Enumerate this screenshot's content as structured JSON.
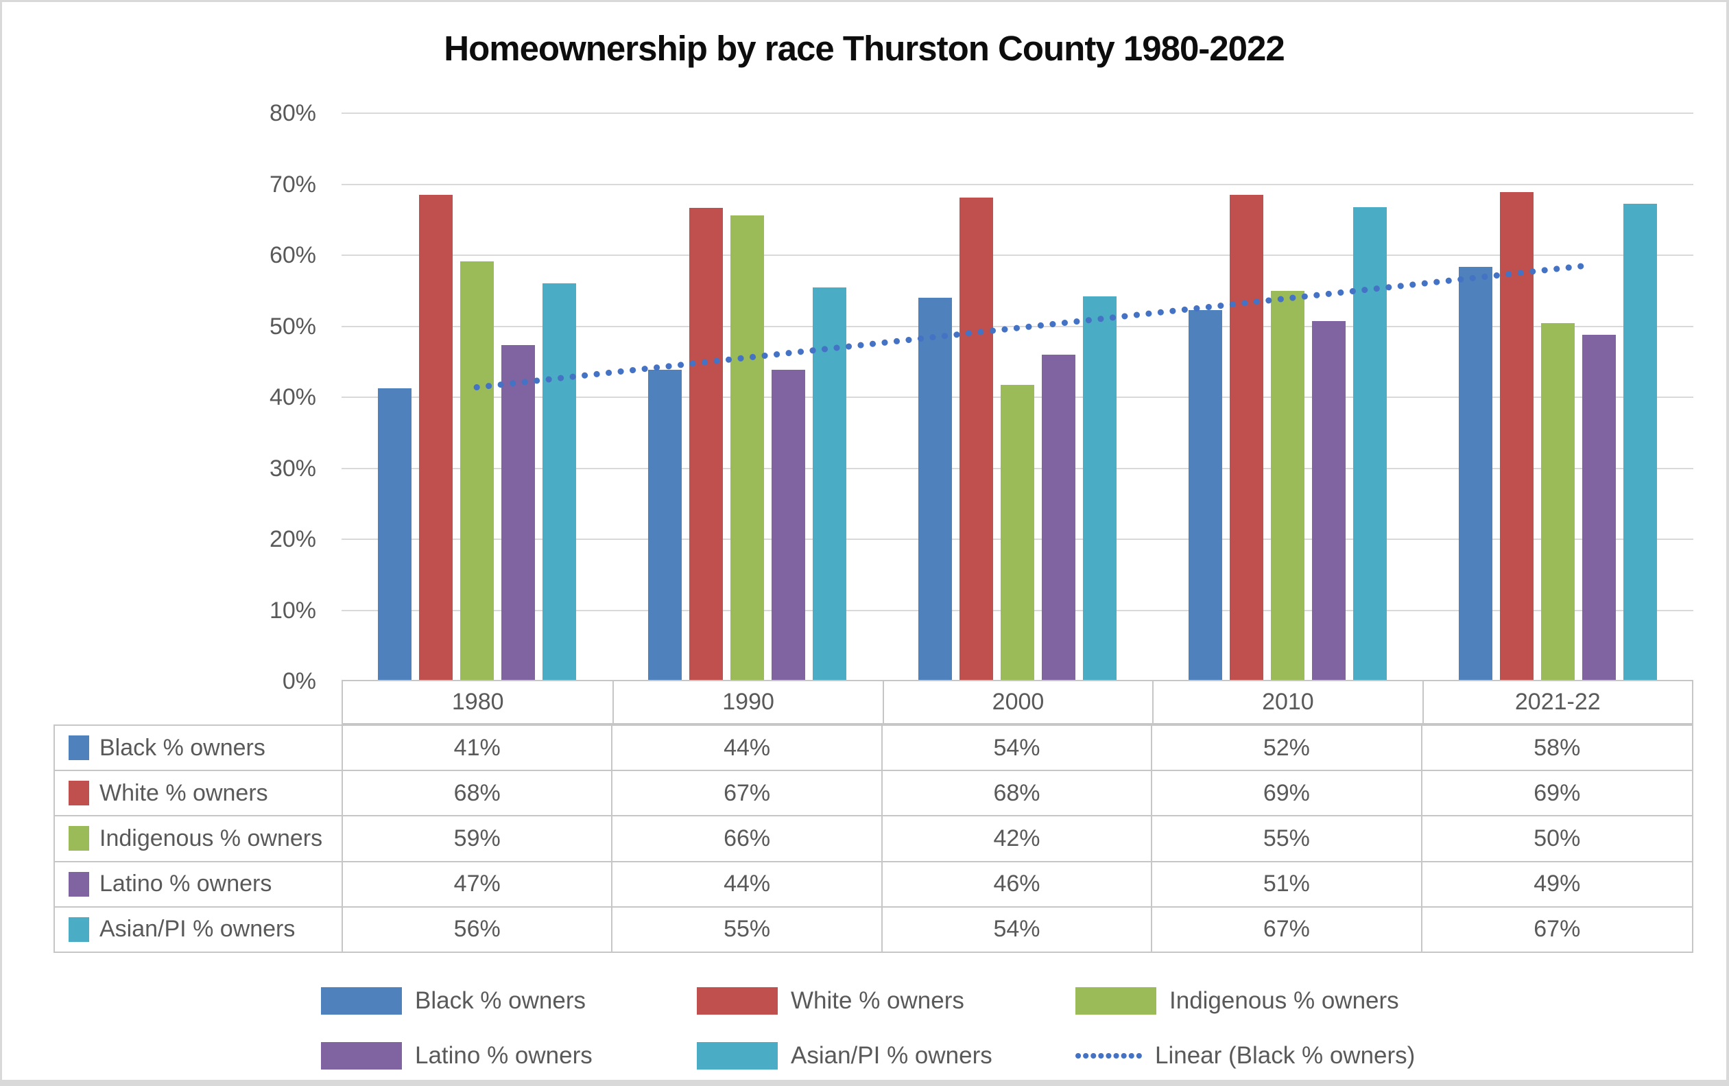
{
  "chart_data": {
    "type": "bar",
    "title": "Homeownership by race Thurston County 1980-2022",
    "xlabel": "",
    "ylabel": "",
    "categories": [
      "1980",
      "1990",
      "2000",
      "2010",
      "2021-22"
    ],
    "series": [
      {
        "name": "Black % owners",
        "color": "#4F81BD",
        "values": [
          41,
          44,
          54,
          52,
          58
        ],
        "bar_values": [
          41.3,
          43.9,
          54.0,
          52.3,
          58.4
        ],
        "display": [
          "41%",
          "44%",
          "54%",
          "52%",
          "58%"
        ]
      },
      {
        "name": "White % owners",
        "color": "#C0504D",
        "values": [
          68,
          67,
          68,
          69,
          69
        ],
        "bar_values": [
          68.5,
          66.7,
          68.1,
          68.5,
          68.9
        ],
        "display": [
          "68%",
          "67%",
          "68%",
          "69%",
          "69%"
        ]
      },
      {
        "name": "Indigenous % owners",
        "color": "#9BBB59",
        "values": [
          59,
          66,
          42,
          55,
          50
        ],
        "bar_values": [
          59.1,
          65.6,
          41.7,
          55.0,
          50.4
        ],
        "display": [
          "59%",
          "66%",
          "42%",
          "55%",
          "50%"
        ]
      },
      {
        "name": "Latino % owners",
        "color": "#8064A2",
        "values": [
          47,
          44,
          46,
          51,
          49
        ],
        "bar_values": [
          47.3,
          43.9,
          46.0,
          50.7,
          48.8
        ],
        "display": [
          "47%",
          "44%",
          "46%",
          "51%",
          "49%"
        ]
      },
      {
        "name": "Asian/PI % owners",
        "color": "#4BACC6",
        "values": [
          56,
          55,
          54,
          67,
          67
        ],
        "bar_values": [
          56.0,
          55.5,
          54.2,
          66.8,
          67.2
        ],
        "display": [
          "56%",
          "55%",
          "54%",
          "67%",
          "67%"
        ]
      }
    ],
    "trendline": {
      "label": "Linear (Black % owners)",
      "series_ref": "Black % owners",
      "color": "#4472C4",
      "style": "dotted",
      "start_value": 41.4,
      "end_value": 58.5
    },
    "y_axis": {
      "min": 0,
      "max": 80,
      "step": 10,
      "tick_labels": [
        "0%",
        "10%",
        "20%",
        "30%",
        "40%",
        "50%",
        "60%",
        "70%",
        "80%"
      ]
    },
    "grid": true,
    "legend_position": "bottom",
    "colors": {
      "gridline": "#D9D9D9",
      "axis_text": "#595959",
      "table_border": "#C6C6C6",
      "frame": "#D9D9D9",
      "background": "#FFFFFF"
    }
  }
}
